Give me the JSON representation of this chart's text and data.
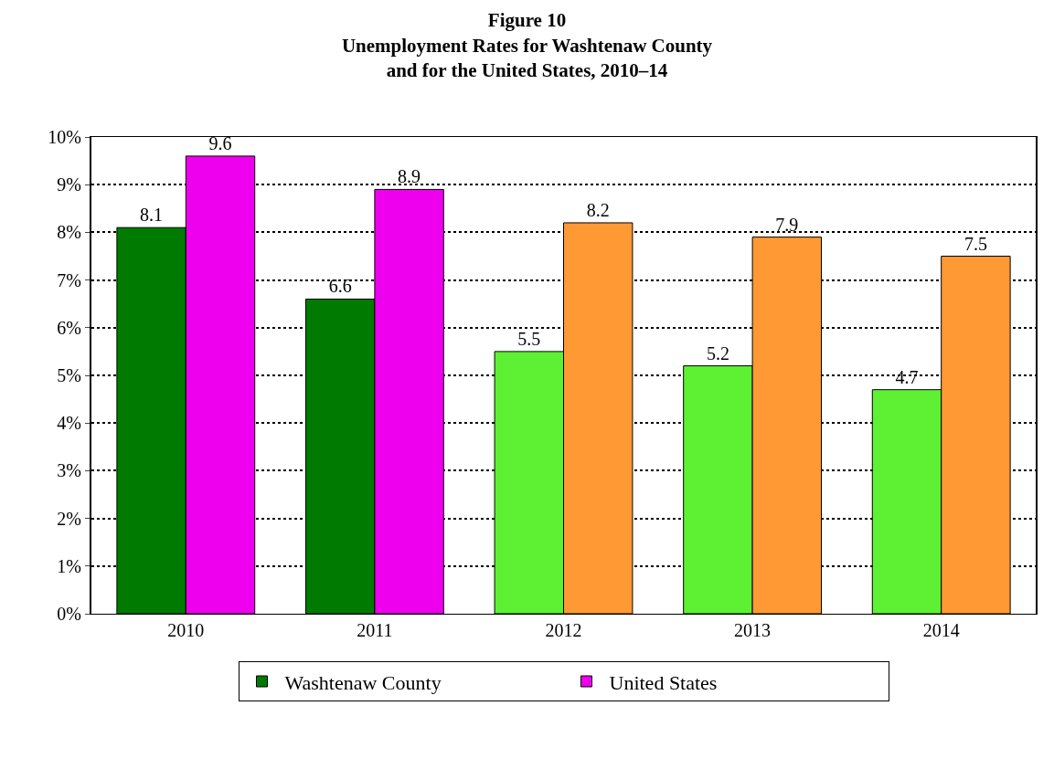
{
  "chart_data": {
    "type": "bar",
    "title": "Figure 10\nUnemployment Rates for Washtenaw County\nand for the United States, 2010–14",
    "categories": [
      "2010",
      "2011",
      "2012",
      "2013",
      "2014"
    ],
    "series": [
      {
        "name": "Washtenaw County",
        "colors": [
          "#007a00",
          "#007a00",
          "#5ef033",
          "#5ef033",
          "#5ef033"
        ],
        "values": [
          8.1,
          6.6,
          5.5,
          5.2,
          4.7
        ]
      },
      {
        "name": "United States",
        "colors": [
          "#ee00ee",
          "#ee00ee",
          "#ff9933",
          "#ff9933",
          "#ff9933"
        ],
        "values": [
          9.6,
          8.9,
          8.2,
          7.9,
          7.5
        ]
      }
    ],
    "ylim": [
      0,
      10
    ],
    "yticks": [
      {
        "value": 0,
        "label": "0%"
      },
      {
        "value": 1,
        "label": "1%"
      },
      {
        "value": 2,
        "label": "2%"
      },
      {
        "value": 3,
        "label": "3%"
      },
      {
        "value": 4,
        "label": "4%"
      },
      {
        "value": 5,
        "label": "5%"
      },
      {
        "value": 6,
        "label": "6%"
      },
      {
        "value": 7,
        "label": "7%"
      },
      {
        "value": 8,
        "label": "8%"
      },
      {
        "value": 9,
        "label": "9%"
      },
      {
        "value": 10,
        "label": "10%"
      }
    ],
    "grid": "y",
    "legend": "bottom",
    "data_labels": true
  }
}
